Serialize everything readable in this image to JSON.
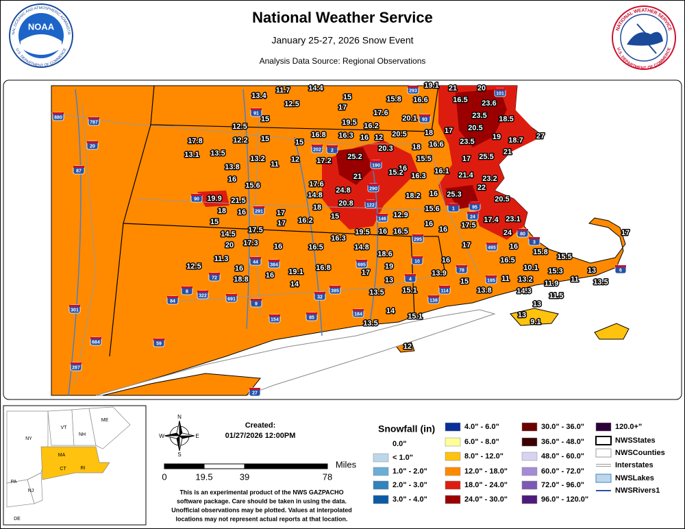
{
  "header": {
    "title": "National Weather Service",
    "subtitle": "January 25-27, 2026 Snow Event",
    "source": "Analysis Data Source: Regional Observations",
    "noaa_logo": {
      "text": "NOAA",
      "ring_top": "NATIONAL OCEANIC AND ATMOSPHERIC ADMINISTRATION",
      "ring_bottom": "U.S. DEPARTMENT OF COMMERCE"
    },
    "nws_logo": {
      "ring_top": "NATIONAL WEATHER SERVICE",
      "ring_bottom": "U.S. DEPARTMENT OF COMMERCE"
    }
  },
  "observations": [
    "13.4",
    "11.7",
    "14.4",
    "15",
    "15.8",
    "16.6",
    "19.1",
    "21",
    "20",
    "12.5",
    "17",
    "16.5",
    "23.6",
    "17.6",
    "20.1",
    "23.5",
    "18.5",
    "12.5",
    "15",
    "19.5",
    "16.2",
    "18",
    "17",
    "20.5",
    "17.8",
    "12.2",
    "15",
    "16.8",
    "16.3",
    "16",
    "12",
    "20.5",
    "19",
    "18.7",
    "27",
    "13.1",
    "13.5",
    "15",
    "18",
    "16.6",
    "23.5",
    "21",
    "13.2",
    "11",
    "12",
    "17.2",
    "25.2",
    "20.3",
    "15.5",
    "17",
    "25.5",
    "13.8",
    "16",
    "16.1",
    "15.2",
    "16.3",
    "16",
    "15.6",
    "21",
    "17.6",
    "21.4",
    "23.2",
    "22",
    "24.8",
    "14.8",
    "16",
    "18.2",
    "25.3",
    "19.9",
    "21.5",
    "18",
    "20.8",
    "15.6",
    "20.5",
    "18",
    "16",
    "17",
    "15",
    "12.9",
    "15",
    "17",
    "16.2",
    "16",
    "17.4",
    "23.1",
    "17.5",
    "17.5",
    "19.5",
    "16",
    "16.5",
    "16",
    "24",
    "14.5",
    "16.3",
    "20",
    "17.3",
    "16.5",
    "14.8",
    "16",
    "18.6",
    "17",
    "15.8",
    "15.5",
    "17",
    "11.3",
    "16",
    "12.5",
    "16",
    "19",
    "16.5",
    "16.8",
    "19.1",
    "16",
    "18.8",
    "16",
    "13.9",
    "10.1",
    "15.3",
    "13",
    "17",
    "13",
    "14",
    "15",
    "11",
    "13.2",
    "11.9",
    "11",
    "13.5",
    "13.5",
    "15.1",
    "13.8",
    "14.3",
    "11.5",
    "13",
    "14",
    "15.1",
    "13",
    "9.1",
    "13.5",
    "12"
  ],
  "interstate_shields": [
    "880",
    "787",
    "20",
    "87",
    "91",
    "90",
    "291",
    "202",
    "2",
    "190",
    "290",
    "93",
    "293",
    "101",
    "122",
    "146",
    "95",
    "24",
    "1",
    "495",
    "3",
    "6",
    "80",
    "395",
    "84",
    "384",
    "44",
    "72",
    "322",
    "8",
    "9",
    "691",
    "154",
    "85",
    "184",
    "695",
    "32",
    "4",
    "10",
    "138",
    "114",
    "295",
    "195",
    "78",
    "59",
    "684",
    "287",
    "301",
    "27"
  ],
  "inset": {
    "states": [
      "NY",
      "VT",
      "NH",
      "ME",
      "MA",
      "CT",
      "RI",
      "PA",
      "NJ",
      "DE"
    ]
  },
  "compass": {
    "n": "N",
    "e": "E",
    "s": "S",
    "w": "W"
  },
  "scale": {
    "unit": "Miles",
    "ticks": [
      "0",
      "19.5",
      "39",
      "78"
    ]
  },
  "created": {
    "label": "Created:",
    "date": "01/27/2026 12:00PM"
  },
  "disclaimer": [
    "This is an experimental product of the NWS GAZPACHO",
    "software package. Care should be taken in using the data.",
    "Unofficial observations may be plotted. Values at interpolated",
    "locations may not represent actual reports at that location."
  ],
  "legend": {
    "title": "Snowfall (in)",
    "items": [
      {
        "label": "0.0\"",
        "color": "#ffffff"
      },
      {
        "label": "< 1.0\"",
        "color": "#bcd7ea"
      },
      {
        "label": "1.0\" - 2.0\"",
        "color": "#6baed6"
      },
      {
        "label": "2.0\" - 3.0\"",
        "color": "#3182bd"
      },
      {
        "label": "3.0\" - 4.0\"",
        "color": "#0b5aa5"
      },
      {
        "label": "4.0\" - 6.0\"",
        "color": "#0a2f9a"
      },
      {
        "label": "6.0\" - 8.0\"",
        "color": "#ffff99"
      },
      {
        "label": "8.0\" - 12.0\"",
        "color": "#ffc20e"
      },
      {
        "label": "12.0\" - 18.0\"",
        "color": "#ff8a00"
      },
      {
        "label": "18.0\" - 24.0\"",
        "color": "#dd1c10"
      },
      {
        "label": "24.0\" - 30.0\"",
        "color": "#9a0000"
      },
      {
        "label": "30.0\" - 36.0\"",
        "color": "#6a0000"
      },
      {
        "label": "36.0\" - 48.0\"",
        "color": "#3c0000"
      },
      {
        "label": "48.0\" - 60.0\"",
        "color": "#d9d2f2"
      },
      {
        "label": "60.0\" - 72.0\"",
        "color": "#a38bd6"
      },
      {
        "label": "72.0\" - 96.0\"",
        "color": "#7d58b5"
      },
      {
        "label": "96.0\" - 120.0\"",
        "color": "#4d1b7c"
      },
      {
        "label": "120.0+\"",
        "color": "#2b0038"
      }
    ],
    "layers": [
      "NWSStates",
      "NWSCounties",
      "Interstates",
      "NWSLakes",
      "NWSRivers1"
    ]
  }
}
